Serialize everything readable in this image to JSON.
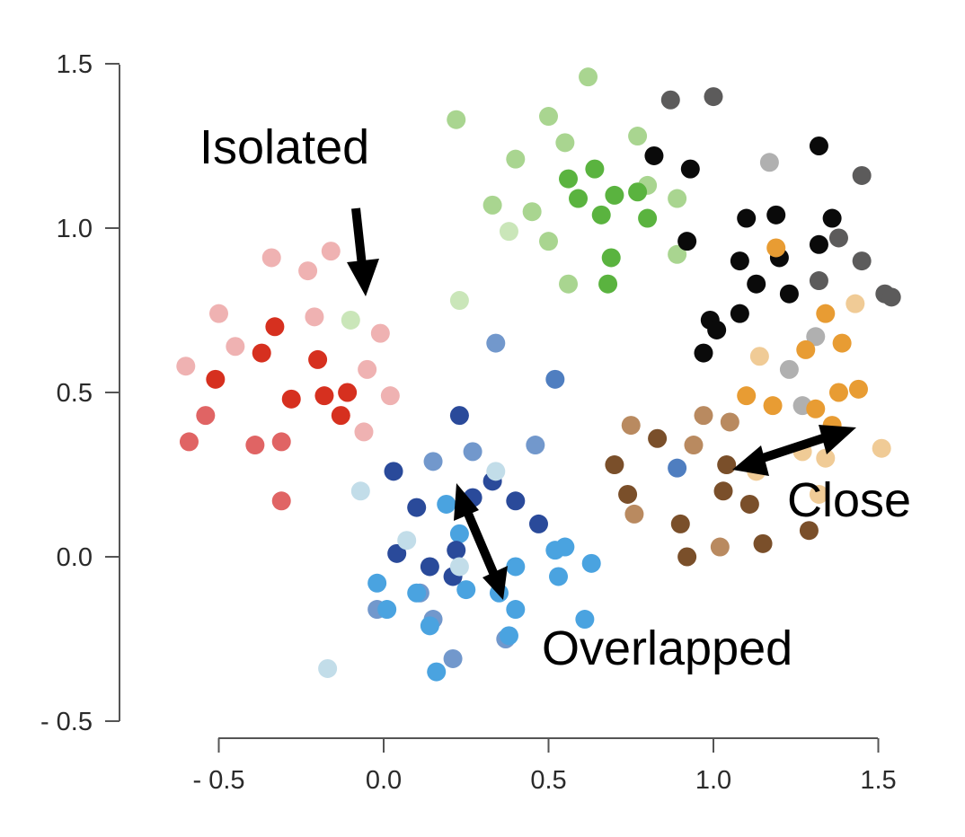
{
  "chart_data": {
    "type": "scatter",
    "title": "",
    "xlabel": "",
    "ylabel": "",
    "xlim": [
      -0.5,
      1.5
    ],
    "ylim": [
      -0.5,
      1.5
    ],
    "grid": false,
    "legend": "none",
    "x_ticks": [
      "- 0.5",
      "0.0",
      "0.5",
      "1.0",
      "1.5"
    ],
    "x_tick_values": [
      -0.5,
      0,
      0.5,
      1.0,
      1.5
    ],
    "y_ticks": [
      "1.5",
      "1.0",
      "0.5",
      "0.0",
      "- 0.5"
    ],
    "y_tick_values": [
      1.5,
      1.0,
      0.5,
      0,
      -0.5
    ],
    "annotations": {
      "isolated": "Isolated",
      "overlapped": "Overlapped",
      "close": "Close"
    },
    "series": [
      {
        "name": "red-light",
        "color": "#efb2b2",
        "points": [
          [
            -0.34,
            0.91
          ],
          [
            -0.16,
            0.93
          ],
          [
            -0.23,
            0.87
          ],
          [
            -0.5,
            0.74
          ],
          [
            -0.45,
            0.64
          ],
          [
            -0.21,
            0.73
          ],
          [
            -0.01,
            0.68
          ],
          [
            -0.05,
            0.57
          ],
          [
            -0.6,
            0.58
          ],
          [
            0.02,
            0.49
          ],
          [
            -0.06,
            0.38
          ]
        ]
      },
      {
        "name": "red-medium",
        "color": "#e06464",
        "points": [
          [
            -0.54,
            0.43
          ],
          [
            -0.59,
            0.35
          ],
          [
            -0.39,
            0.34
          ],
          [
            -0.31,
            0.35
          ],
          [
            -0.31,
            0.17
          ]
        ]
      },
      {
        "name": "red-dark",
        "color": "#d6301f",
        "points": [
          [
            -0.33,
            0.7
          ],
          [
            -0.37,
            0.62
          ],
          [
            -0.51,
            0.54
          ],
          [
            -0.2,
            0.6
          ],
          [
            -0.28,
            0.48
          ],
          [
            -0.18,
            0.49
          ],
          [
            -0.11,
            0.5
          ],
          [
            -0.13,
            0.43
          ]
        ]
      },
      {
        "name": "green-light",
        "color": "#a9d590",
        "points": [
          [
            0.62,
            1.46
          ],
          [
            0.22,
            1.33
          ],
          [
            0.5,
            1.34
          ],
          [
            0.4,
            1.21
          ],
          [
            0.55,
            1.26
          ],
          [
            0.77,
            1.28
          ],
          [
            0.33,
            1.07
          ],
          [
            0.45,
            1.05
          ],
          [
            0.5,
            0.96
          ],
          [
            0.56,
            0.83
          ],
          [
            0.89,
            1.09
          ],
          [
            0.8,
            1.13
          ],
          [
            0.89,
            0.92
          ]
        ]
      },
      {
        "name": "green-pale",
        "color": "#cae6b9",
        "points": [
          [
            -0.1,
            0.72
          ],
          [
            0.23,
            0.78
          ],
          [
            0.38,
            0.99
          ]
        ]
      },
      {
        "name": "green-medium",
        "color": "#5ab33f",
        "points": [
          [
            0.56,
            1.15
          ],
          [
            0.64,
            1.18
          ],
          [
            0.59,
            1.09
          ],
          [
            0.66,
            1.04
          ],
          [
            0.7,
            1.1
          ],
          [
            0.77,
            1.11
          ],
          [
            0.8,
            1.03
          ],
          [
            0.69,
            0.91
          ],
          [
            0.68,
            0.83
          ]
        ]
      },
      {
        "name": "gray-dark",
        "color": "#5c5b5b",
        "points": [
          [
            0.87,
            1.39
          ],
          [
            1.0,
            1.4
          ],
          [
            1.45,
            1.16
          ],
          [
            1.38,
            0.97
          ],
          [
            1.45,
            0.9
          ],
          [
            1.32,
            0.84
          ],
          [
            1.52,
            0.8
          ],
          [
            1.54,
            0.79
          ]
        ]
      },
      {
        "name": "gray-light",
        "color": "#b0b0b0",
        "points": [
          [
            1.17,
            1.2
          ],
          [
            1.31,
            0.67
          ],
          [
            1.23,
            0.57
          ],
          [
            1.27,
            0.46
          ]
        ]
      },
      {
        "name": "black",
        "color": "#0a0a0a",
        "points": [
          [
            0.82,
            1.22
          ],
          [
            0.93,
            1.18
          ],
          [
            0.92,
            0.96
          ],
          [
            1.1,
            1.03
          ],
          [
            1.19,
            1.04
          ],
          [
            1.32,
            1.25
          ],
          [
            1.36,
            1.03
          ],
          [
            1.08,
            0.9
          ],
          [
            1.2,
            0.91
          ],
          [
            1.13,
            0.83
          ],
          [
            1.23,
            0.8
          ],
          [
            1.32,
            0.95
          ],
          [
            0.99,
            0.72
          ],
          [
            1.01,
            0.69
          ],
          [
            0.97,
            0.62
          ],
          [
            1.08,
            0.74
          ]
        ]
      },
      {
        "name": "orange-light",
        "color": "#f0cb96",
        "points": [
          [
            1.43,
            0.77
          ],
          [
            1.14,
            0.61
          ],
          [
            1.51,
            0.33
          ],
          [
            1.27,
            0.32
          ],
          [
            1.34,
            0.3
          ],
          [
            1.32,
            0.19
          ],
          [
            1.13,
            0.26
          ]
        ]
      },
      {
        "name": "orange",
        "color": "#e89c33",
        "points": [
          [
            1.19,
            0.94
          ],
          [
            1.34,
            0.74
          ],
          [
            1.39,
            0.65
          ],
          [
            1.28,
            0.63
          ],
          [
            1.1,
            0.49
          ],
          [
            1.18,
            0.46
          ],
          [
            1.38,
            0.5
          ],
          [
            1.44,
            0.51
          ],
          [
            1.31,
            0.45
          ],
          [
            1.36,
            0.4
          ]
        ]
      },
      {
        "name": "brown-light",
        "color": "#b98a60",
        "points": [
          [
            0.75,
            0.4
          ],
          [
            0.97,
            0.43
          ],
          [
            1.05,
            0.41
          ],
          [
            0.94,
            0.34
          ],
          [
            0.76,
            0.13
          ],
          [
            1.02,
            0.03
          ]
        ]
      },
      {
        "name": "brown-dark",
        "color": "#7a4f2a",
        "points": [
          [
            0.83,
            0.36
          ],
          [
            0.7,
            0.28
          ],
          [
            0.74,
            0.19
          ],
          [
            1.04,
            0.28
          ],
          [
            1.03,
            0.2
          ],
          [
            1.11,
            0.16
          ],
          [
            0.9,
            0.1
          ],
          [
            0.92,
            0.0
          ],
          [
            1.15,
            0.04
          ],
          [
            1.29,
            0.08
          ]
        ]
      },
      {
        "name": "blue-steel",
        "color": "#7298cc",
        "points": [
          [
            0.27,
            0.32
          ],
          [
            0.15,
            0.29
          ],
          [
            0.46,
            0.34
          ],
          [
            0.34,
            0.65
          ],
          [
            -0.02,
            -0.16
          ],
          [
            0.11,
            -0.11
          ],
          [
            0.15,
            -0.19
          ],
          [
            0.37,
            -0.25
          ],
          [
            0.21,
            -0.31
          ]
        ]
      },
      {
        "name": "blue-medium",
        "color": "#4f7ec0",
        "points": [
          [
            0.52,
            0.54
          ],
          [
            0.89,
            0.27
          ]
        ]
      },
      {
        "name": "blue-light",
        "color": "#4aa3e0",
        "points": [
          [
            0.19,
            0.16
          ],
          [
            0.23,
            0.07
          ],
          [
            0.52,
            0.02
          ],
          [
            0.55,
            0.03
          ],
          [
            0.63,
            -0.02
          ],
          [
            0.53,
            -0.06
          ],
          [
            0.4,
            -0.03
          ],
          [
            0.25,
            -0.1
          ],
          [
            0.35,
            -0.11
          ],
          [
            0.4,
            -0.16
          ],
          [
            0.38,
            -0.24
          ],
          [
            -0.02,
            -0.08
          ],
          [
            0.01,
            -0.16
          ],
          [
            0.1,
            -0.11
          ],
          [
            0.14,
            -0.21
          ],
          [
            0.16,
            -0.35
          ],
          [
            0.61,
            -0.19
          ]
        ]
      },
      {
        "name": "blue-navy",
        "color": "#2a4a9a",
        "points": [
          [
            0.23,
            0.43
          ],
          [
            0.03,
            0.26
          ],
          [
            0.1,
            0.15
          ],
          [
            0.33,
            0.23
          ],
          [
            0.4,
            0.17
          ],
          [
            0.47,
            0.1
          ],
          [
            0.04,
            0.01
          ],
          [
            0.14,
            -0.03
          ],
          [
            0.22,
            0.02
          ],
          [
            0.21,
            -0.06
          ],
          [
            0.27,
            0.18
          ]
        ]
      },
      {
        "name": "blue-pale",
        "color": "#c2dde9",
        "points": [
          [
            -0.07,
            0.2
          ],
          [
            0.34,
            0.26
          ],
          [
            0.07,
            0.05
          ],
          [
            0.23,
            -0.03
          ],
          [
            -0.17,
            -0.34
          ]
        ]
      }
    ]
  }
}
